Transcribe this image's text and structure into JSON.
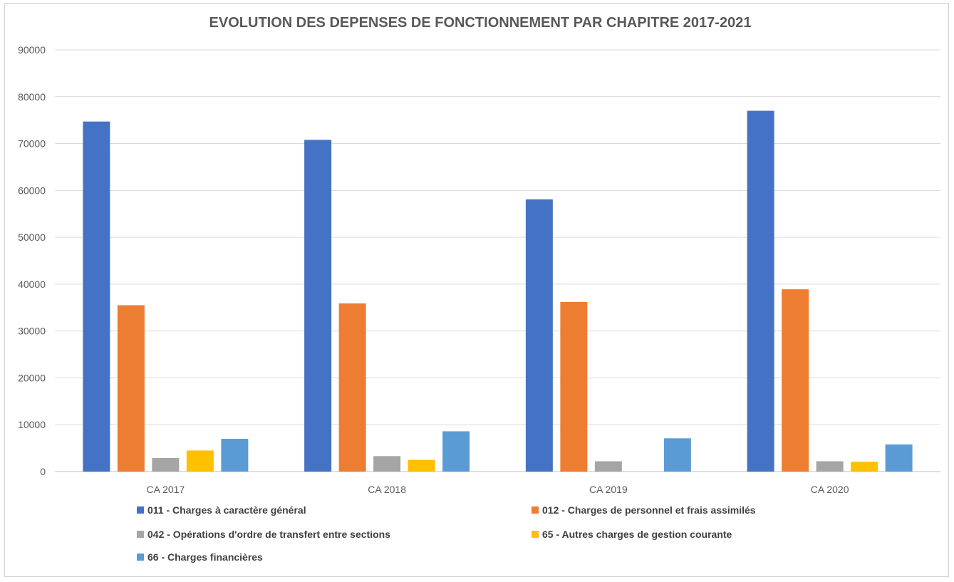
{
  "chart_data": {
    "type": "bar",
    "title": "EVOLUTION DES DEPENSES DE FONCTIONNEMENT PAR CHAPITRE 2017-2021",
    "xlabel": "",
    "ylabel": "",
    "categories": [
      "CA 2017",
      "CA 2018",
      "CA 2019",
      "CA 2020"
    ],
    "ylim": [
      0,
      90000
    ],
    "yticks": [
      0,
      10000,
      20000,
      30000,
      40000,
      50000,
      60000,
      70000,
      80000,
      90000
    ],
    "grid": true,
    "legend_position": "bottom",
    "series": [
      {
        "name": "011 - Charges à caractère général",
        "color": "#4472C4",
        "values": [
          74700,
          70800,
          58100,
          77000
        ]
      },
      {
        "name": "012 - Charges de personnel et frais assimilés",
        "color": "#ED7D31",
        "values": [
          35500,
          35900,
          36200,
          38900
        ]
      },
      {
        "name": "042 - Opérations d'ordre de transfert entre sections",
        "color": "#A5A5A5",
        "values": [
          2900,
          3300,
          2200,
          2200
        ]
      },
      {
        "name": "65 - Autres charges de gestion courante",
        "color": "#FFC000",
        "values": [
          4500,
          2500,
          0,
          2100
        ]
      },
      {
        "name": "66 - Charges financières",
        "color": "#5B9BD5",
        "values": [
          7000,
          8600,
          7100,
          5800
        ]
      }
    ]
  }
}
